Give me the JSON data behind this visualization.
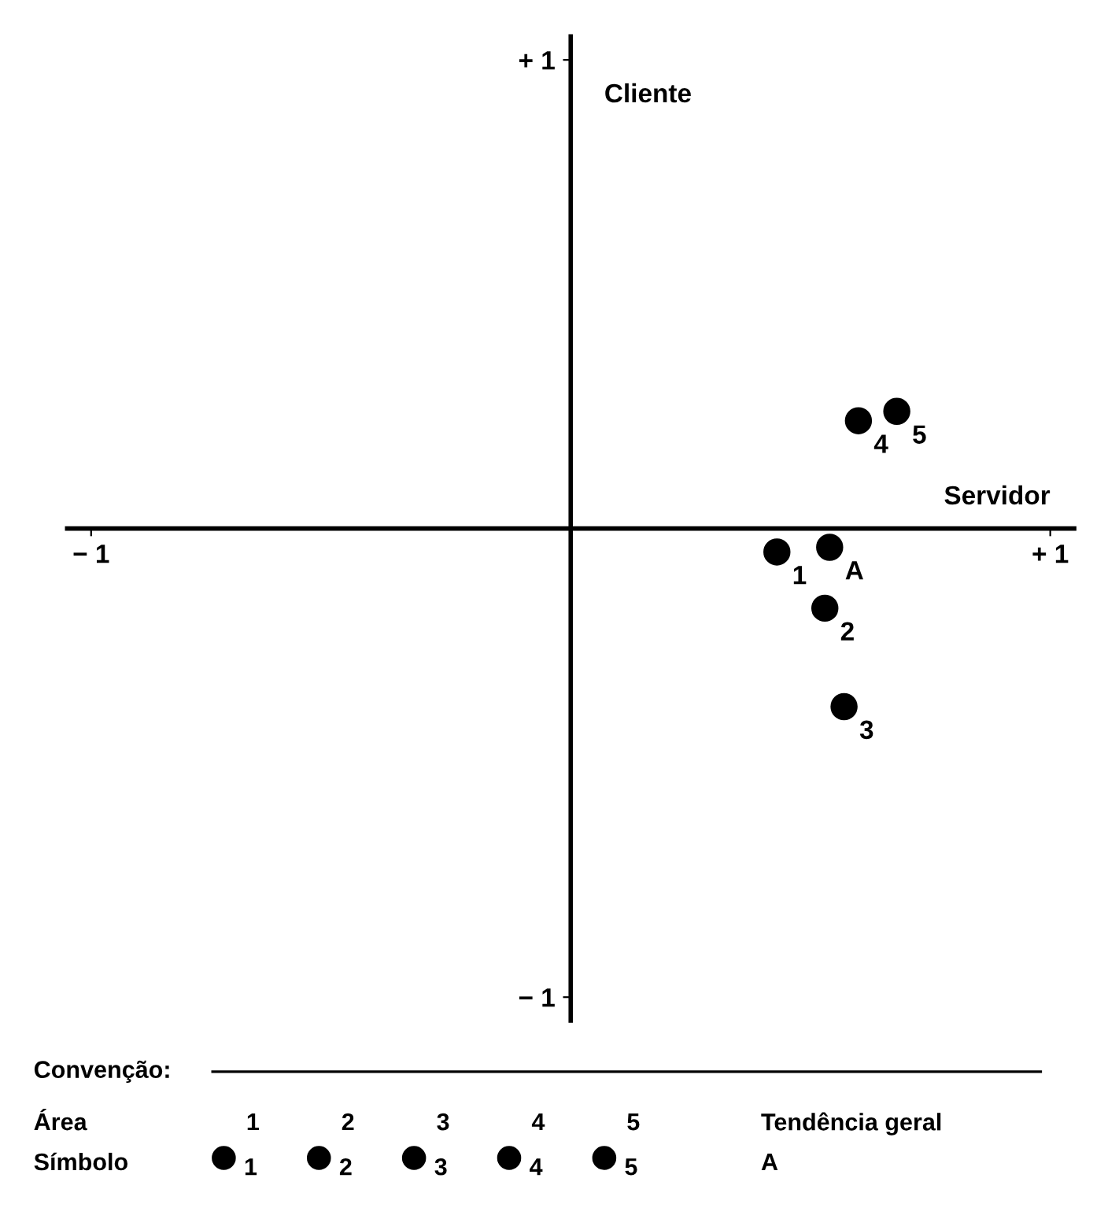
{
  "chart_data": {
    "type": "scatter",
    "xlabel": "Servidor",
    "ylabel": "Cliente",
    "xlim": [
      -1.05,
      1.05
    ],
    "ylim": [
      -1.05,
      1.05
    ],
    "xticks": [
      {
        "value": -1,
        "label": "− 1"
      },
      {
        "value": 1,
        "label": "+ 1"
      }
    ],
    "yticks": [
      {
        "value": -1,
        "label": "− 1"
      },
      {
        "value": 1,
        "label": "+ 1"
      }
    ],
    "marker": "circle",
    "grid": false,
    "legend": "bottom",
    "series": [
      {
        "name": "1",
        "color": "#000000",
        "x": [
          0.43
        ],
        "values": [
          -0.05
        ]
      },
      {
        "name": "2",
        "color": "#000000",
        "x": [
          0.53
        ],
        "values": [
          -0.17
        ]
      },
      {
        "name": "3",
        "color": "#000000",
        "x": [
          0.57
        ],
        "values": [
          -0.38
        ]
      },
      {
        "name": "4",
        "color": "#000000",
        "x": [
          0.6
        ],
        "values": [
          0.23
        ]
      },
      {
        "name": "5",
        "color": "#000000",
        "x": [
          0.68
        ],
        "values": [
          0.25
        ]
      },
      {
        "name": "A",
        "color": "#000000",
        "x": [
          0.54
        ],
        "values": [
          -0.04
        ]
      }
    ],
    "annotations": [
      "Convenção:",
      "Área",
      "Símbolo",
      "Tendência geral"
    ]
  }
}
